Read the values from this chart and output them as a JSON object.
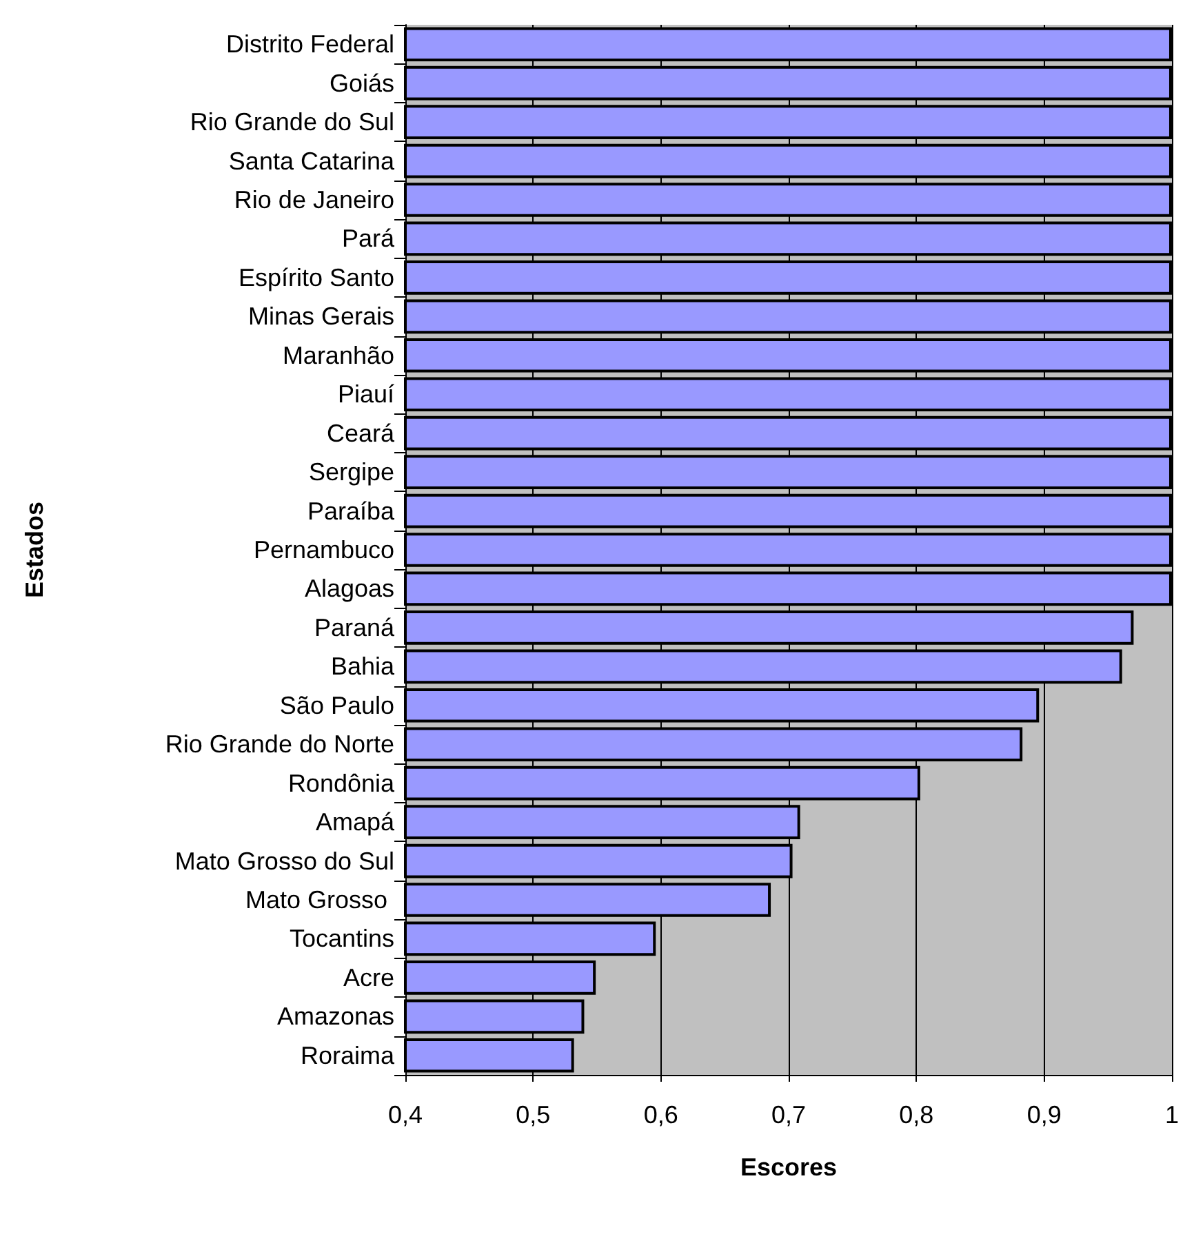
{
  "chart_data": {
    "type": "bar",
    "orientation": "horizontal",
    "xlabel": "Escores",
    "ylabel": "Estados",
    "categories": [
      "Distrito Federal",
      "Goiás",
      "Rio Grande do Sul",
      "Santa Catarina",
      "Rio de Janeiro",
      "Pará",
      "Espírito Santo",
      "Minas Gerais",
      "Maranhão",
      "Piauí",
      "Ceará",
      "Sergipe",
      "Paraíba",
      "Pernambuco",
      "Alagoas",
      "Paraná",
      "Bahia",
      "São Paulo",
      "Rio Grande do Norte",
      "Rondônia",
      "Amapá",
      "Mato Grosso do Sul",
      "Mato Grosso ",
      "Tocantins",
      "Acre",
      "Amazonas",
      "Roraima"
    ],
    "values": [
      1,
      1,
      1,
      1,
      1,
      1,
      1,
      1,
      1,
      1,
      1,
      1,
      1,
      1,
      1,
      0.97,
      0.961,
      0.896,
      0.883,
      0.803,
      0.709,
      0.703,
      0.686,
      0.596,
      0.549,
      0.54,
      0.532
    ],
    "color": "#9999ff",
    "xlim": [
      0.4,
      1
    ],
    "xticks": [
      {
        "value": 0.4,
        "label": "0,4"
      },
      {
        "value": 0.5,
        "label": "0,5"
      },
      {
        "value": 0.6,
        "label": "0,6"
      },
      {
        "value": 0.7,
        "label": "0,7"
      },
      {
        "value": 0.8,
        "label": "0,8"
      },
      {
        "value": 0.9,
        "label": "0,9"
      },
      1
    ],
    "grid": "x"
  }
}
